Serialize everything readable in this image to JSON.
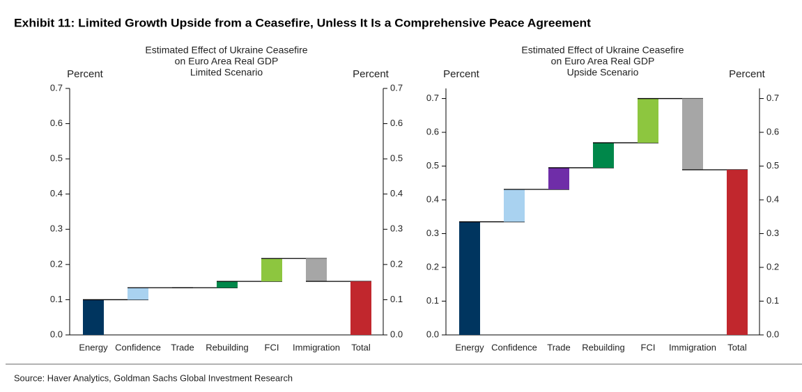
{
  "header": {
    "title": "Exhibit 11: Limited Growth Upside from a Ceasefire, Unless It Is a Comprehensive Peace Agreement"
  },
  "footer": {
    "source": "Source: Haver Analytics, Goldman Sachs Global Investment Research"
  },
  "chart_data": [
    {
      "type": "waterfall",
      "title": [
        "Estimated Effect of Ukraine Ceasefire",
        "on Euro Area Real GDP"
      ],
      "subtitle": "Limited Scenario",
      "ylabel": "Percent",
      "y2label": "Percent",
      "categories": [
        "Energy",
        "Confidence",
        "Trade",
        "Rebuilding",
        "FCI",
        "Immigration",
        "Total"
      ],
      "values": [
        0.1,
        0.034,
        0,
        0.018,
        0.065,
        -0.065,
        0.152
      ],
      "colors": [
        "#00355f",
        "#a9d2f0",
        "#6f2da8",
        "#00874a",
        "#8dc63f",
        "#a6a6a6",
        "#c1272d"
      ],
      "ylim": [
        0,
        0.7
      ],
      "yticks": [
        {
          "value": 0,
          "label": "0.0"
        },
        0.1,
        0.2,
        0.3,
        0.4,
        0.5,
        0.6,
        0.7
      ],
      "y2lim": [
        0,
        0.7
      ],
      "y2ticks": [
        {
          "value": 0,
          "label": "0.0"
        },
        0.1,
        0.2,
        0.3,
        0.4,
        0.5,
        0.6,
        0.7
      ]
    },
    {
      "type": "waterfall",
      "title": [
        "Estimated Effect of Ukraine Ceasefire",
        "on Euro Area Real GDP"
      ],
      "subtitle": "Upside Scenario",
      "ylabel": "Percent",
      "y2label": "Percent",
      "categories": [
        "Energy",
        "Confidence",
        "Trade",
        "Rebuilding",
        "FCI",
        "Immigration",
        "Total"
      ],
      "values": [
        0.335,
        0.096,
        0.064,
        0.074,
        0.131,
        -0.211,
        0.489
      ],
      "colors": [
        "#00355f",
        "#a9d2f0",
        "#6f2da8",
        "#00874a",
        "#8dc63f",
        "#a6a6a6",
        "#c1272d"
      ],
      "ylim": [
        0,
        0.73
      ],
      "yticks": [
        {
          "value": 0,
          "label": "0.0"
        },
        0.1,
        0.2,
        0.3,
        0.4,
        0.5,
        0.6,
        0.7
      ],
      "y2lim": [
        0,
        0.73
      ],
      "y2ticks": [
        {
          "value": 0,
          "label": "0.0"
        },
        0.1,
        0.2,
        0.3,
        0.4,
        0.5,
        0.6,
        0.7
      ]
    }
  ]
}
